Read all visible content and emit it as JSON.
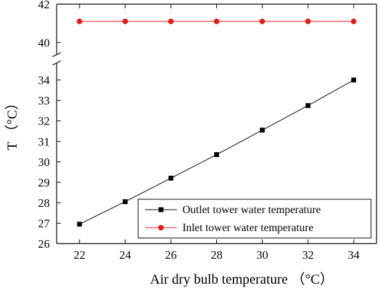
{
  "chart_data": {
    "type": "line",
    "xlabel": "Air dry bulb temperature （°C）",
    "ylabel": "T （°C）",
    "x": [
      22,
      24,
      26,
      28,
      30,
      32,
      34
    ],
    "x_ticks": [
      "22",
      "24",
      "26",
      "28",
      "30",
      "32",
      "34"
    ],
    "xlim": [
      21.0,
      35.0
    ],
    "y_axis_break": true,
    "y_ticks_lower": [
      "26",
      "27",
      "28",
      "29",
      "30",
      "31",
      "32",
      "33",
      "34"
    ],
    "y_ticks_upper": [
      "40",
      "42"
    ],
    "ylim_lower": [
      26,
      34.8
    ],
    "ylim_upper": [
      39.4,
      42
    ],
    "grid": false,
    "legend_position": "bottom-right",
    "series": [
      {
        "name": "Outlet tower water temperature",
        "color": "#000000",
        "marker": "square",
        "values": [
          26.95,
          28.05,
          29.2,
          30.35,
          31.55,
          32.75,
          34.0
        ]
      },
      {
        "name": "Inlet tower water temperature",
        "color": "#e31a1c",
        "marker": "circle",
        "values": [
          41.1,
          41.1,
          41.1,
          41.1,
          41.1,
          41.1,
          41.1
        ]
      }
    ]
  }
}
